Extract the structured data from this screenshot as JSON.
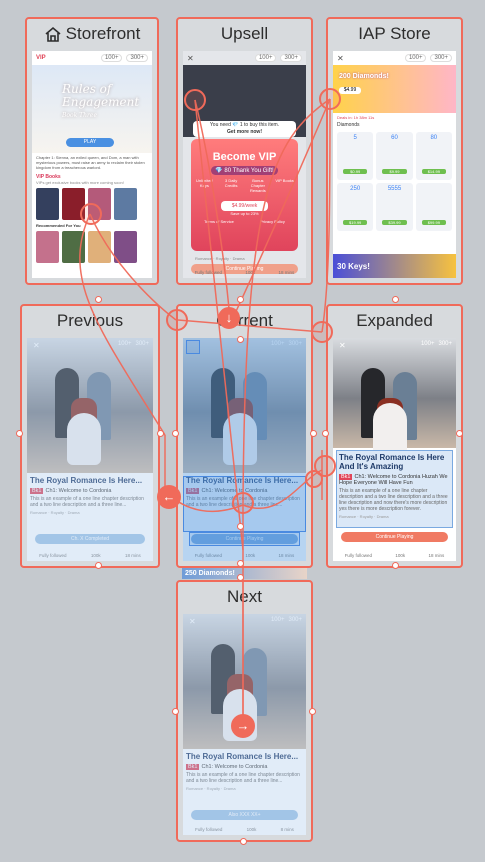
{
  "frames": {
    "storefront": {
      "title": "Storefront",
      "icon": "home-icon"
    },
    "upsell": {
      "title": "Upsell"
    },
    "iap": {
      "title": "IAP Store"
    },
    "previous": {
      "title": "Previous"
    },
    "current": {
      "title": "Current"
    },
    "expanded": {
      "title": "Expanded"
    },
    "next": {
      "title": "Next"
    }
  },
  "status": {
    "keys": "100+",
    "diamonds": "300+"
  },
  "storefront": {
    "vip": "VIP",
    "logo_line1": "Rules of",
    "logo_line2": "Engagement",
    "logo_line3": "Book Three",
    "play": "PLAY",
    "blurb": "Chapter 1: Sienna, an exiled queen, and Dom, a man with mysterious powers, must raise an army to reclaim their stolen kingdom from a treacherous warlord.",
    "vip_books": "VIP Books",
    "vip_sub": "VIPs get exclusive books with more coming soon!",
    "recommended": "Recommended For You",
    "covers_vip": [
      "BIG BET",
      "BLOOD BOUND",
      "",
      ""
    ],
    "covers_rec": [
      "",
      "",
      "",
      ""
    ]
  },
  "upsell": {
    "need": "You need 💎 1 to buy this item.",
    "get_more": "Get more now!",
    "become_vip": "Become VIP",
    "thank_you": "💎 80 Thank You Gift!",
    "perks": [
      "Unlimited Keys",
      "3 Daily Credits",
      "Bonus Chapter Rewards",
      "VIP Books"
    ],
    "price": "$4.99/week",
    "save": "Save up to 23%",
    "terms": "Terms of Service",
    "privacy": "Privacy Policy",
    "genre": "Romance · Royalty · Drama",
    "continue": "Continue Playing"
  },
  "iap": {
    "header": "200 Diamonds!",
    "header_price": "$4.99",
    "deal": "Deals in: 1h 38m 11s",
    "diamonds_label": "Diamonds",
    "items": [
      {
        "amount": "5",
        "price": "$0.99"
      },
      {
        "amount": "60",
        "price": "$9.99"
      },
      {
        "amount": "80",
        "price": "$14.99"
      },
      {
        "amount": "250",
        "price": "$19.99"
      },
      {
        "amount": "5555",
        "price": "$39.99"
      },
      {
        "amount": "",
        "price": "$99.99"
      }
    ],
    "footer": "30 Keys!"
  },
  "story": {
    "title": "The Royal Romance Is Here...",
    "title_expanded": "The Royal Romance Is Here And It's Amazing",
    "episode_tag": "Bk1",
    "episode": "Ch1: Welcome to Cordonia",
    "episode_expanded": "Ch1: Welcome to Cordonia Huzah We Hope Everyone Will Have Fun",
    "desc": "This is an example of a one line chapter description and a two line description and a three line...",
    "desc_expanded": "This is an example of a one line chapter description and a two line description and a three line description and now there's more description yes there is more description forever.",
    "genre": "Romance · Royalty · Drama",
    "cta_prev": "Ch. X Completed",
    "cta_continue": "Continue Playing",
    "cta_next": "Also XXX XX+",
    "followed": "Fully followed",
    "reads": "100k",
    "time": "18 mins",
    "time_next": "8 mins",
    "banner": "250 Diamonds!"
  }
}
